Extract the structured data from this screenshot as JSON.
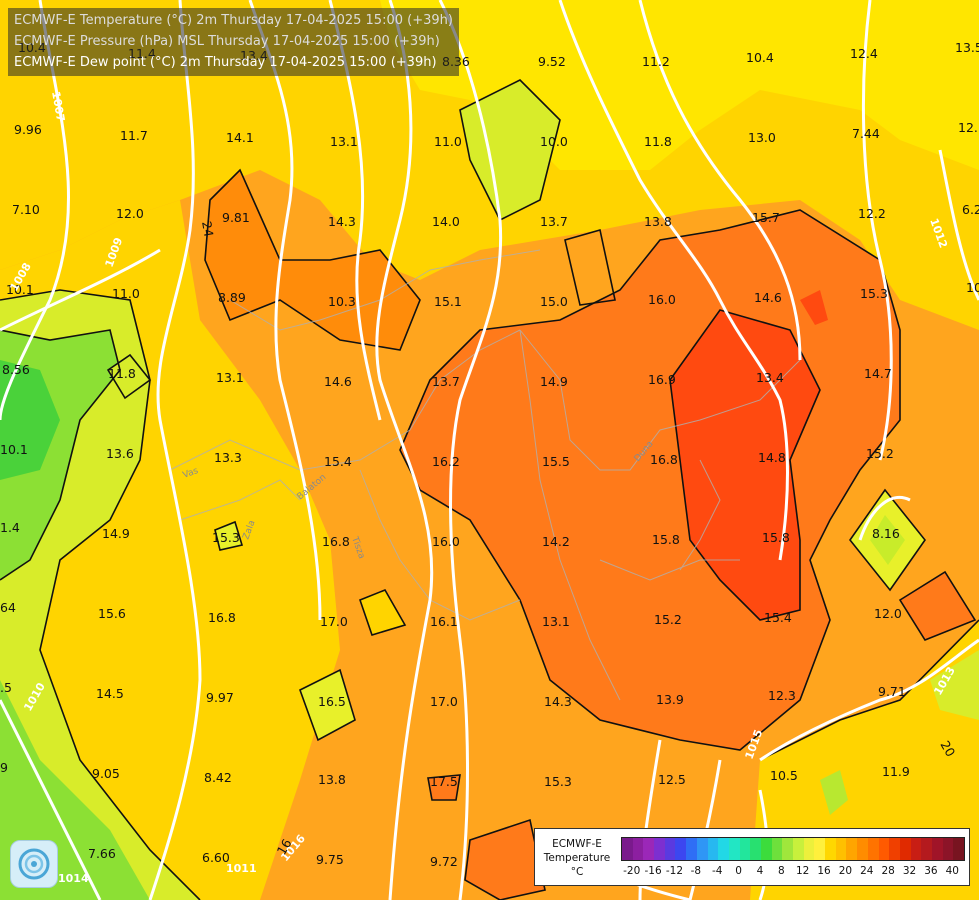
{
  "header": {
    "line1": "ECMWF-E Temperature (°C) 2m Thursday 17-04-2025 15:00 (+39h)",
    "line2": "ECMWF-E Pressure (hPa) MSL Thursday 17-04-2025 15:00 (+39h)",
    "line3": "ECMWF-E Dew point (°C) 2m Thursday 17-04-2025 15:00 (+39h)"
  },
  "legend": {
    "title_line1": "ECMWF-E",
    "title_line2": "Temperature",
    "title_line3": "°C",
    "ticks": [
      "-20",
      "-16",
      "-12",
      "-8",
      "-4",
      "0",
      "4",
      "8",
      "12",
      "16",
      "20",
      "24",
      "28",
      "32",
      "36",
      "40"
    ],
    "colors": [
      "#7a1a8c",
      "#8c1fa0",
      "#9b27b8",
      "#7d2fd0",
      "#5a3ae0",
      "#3c47f0",
      "#2f6ef5",
      "#2f96f5",
      "#27b8f0",
      "#22d8e6",
      "#22e6c4",
      "#22e69c",
      "#28e070",
      "#3cdc3c",
      "#6ee03c",
      "#a0e63c",
      "#c8f03c",
      "#ecf03c",
      "#fff03c",
      "#ffd700",
      "#ffc000",
      "#ffa500",
      "#ff8c00",
      "#ff7300",
      "#ff5a00",
      "#f04000",
      "#e02a00",
      "#c81e14",
      "#b41a1e",
      "#a01428",
      "#8c1428",
      "#781420"
    ]
  },
  "pressure_labels": [
    "1007",
    "1008",
    "1009",
    "1010",
    "1011",
    "1015",
    "1012",
    "1013",
    "1014",
    "1016"
  ],
  "contour_labels": [
    "24",
    "20",
    "16"
  ],
  "rivers": [
    "Vas",
    "Zala",
    "Balaton",
    "Tisza",
    "Duna"
  ],
  "values": [
    "10.4",
    "11.4",
    "13.4",
    "8.36",
    "9.52",
    "11.2",
    "10.4",
    "12.4",
    "13.5",
    "9.96",
    "11.7",
    "14.1",
    "13.1",
    "11.0",
    "10.0",
    "11.8",
    "13.0",
    "7.44",
    "12.",
    "7.10",
    "12.0",
    "9.81",
    "14.3",
    "14.0",
    "13.7",
    "13.8",
    "15.7",
    "12.2",
    "6.2",
    "10.1",
    "11.0",
    "8.89",
    "10.3",
    "15.1",
    "15.0",
    "16.0",
    "14.6",
    "15.3",
    "10",
    "8.56",
    "11.8",
    "13.1",
    "14.6",
    "13.7",
    "14.9",
    "16.9",
    "13.4",
    "14.7",
    "10.1",
    "13.6",
    "13.3",
    "15.4",
    "16.2",
    "15.5",
    "16.8",
    "14.8",
    "15.2",
    "1.4",
    "14.9",
    "15.3",
    "16.8",
    "16.0",
    "14.2",
    "15.8",
    "15.8",
    "8.16",
    "64",
    "15.6",
    "16.8",
    "17.0",
    "16.1",
    "13.1",
    "15.2",
    "15.4",
    "12.0",
    ".5",
    "14.5",
    "9.97",
    "16.5",
    "17.0",
    "14.3",
    "13.9",
    "12.3",
    "9.71",
    "9",
    "9.05",
    "8.42",
    "13.8",
    "17.5",
    "15.3",
    "12.5",
    "10.5",
    "11.9",
    "7.66",
    "6.60",
    "9.75",
    "9.72"
  ]
}
